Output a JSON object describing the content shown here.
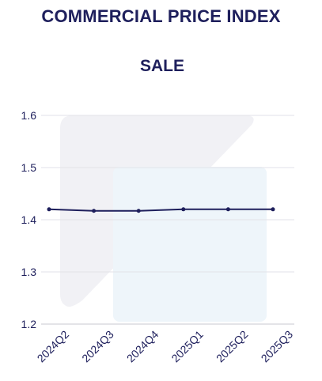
{
  "page": {
    "title": "COMMERCIAL PRICE INDEX"
  },
  "chart_data": {
    "type": "line",
    "title": "SALE",
    "xlabel": "",
    "ylabel": "",
    "categories": [
      "2024Q2",
      "2024Q3",
      "2024Q4",
      "2025Q1",
      "2025Q2",
      "2025Q3"
    ],
    "series": [
      {
        "values": [
          1.42,
          1.417,
          1.417,
          1.42,
          1.42,
          1.42
        ],
        "color": "#1e1f5c"
      }
    ],
    "ylim": [
      1.2,
      1.6
    ],
    "yticks": [
      1.2,
      1.3,
      1.4,
      1.5,
      1.6
    ],
    "ytick_labels": [
      "1.2",
      "1.3",
      "1.4",
      "1.5",
      "1.6"
    ],
    "grid": true,
    "legend": "none",
    "colors": {
      "text": "#1e1f5c",
      "line": "#1e1f5c",
      "grid": "#e2e2e8",
      "watermark_left": "#f1f1f5",
      "watermark_right": "#eef5fa"
    },
    "watermark": "logo"
  }
}
